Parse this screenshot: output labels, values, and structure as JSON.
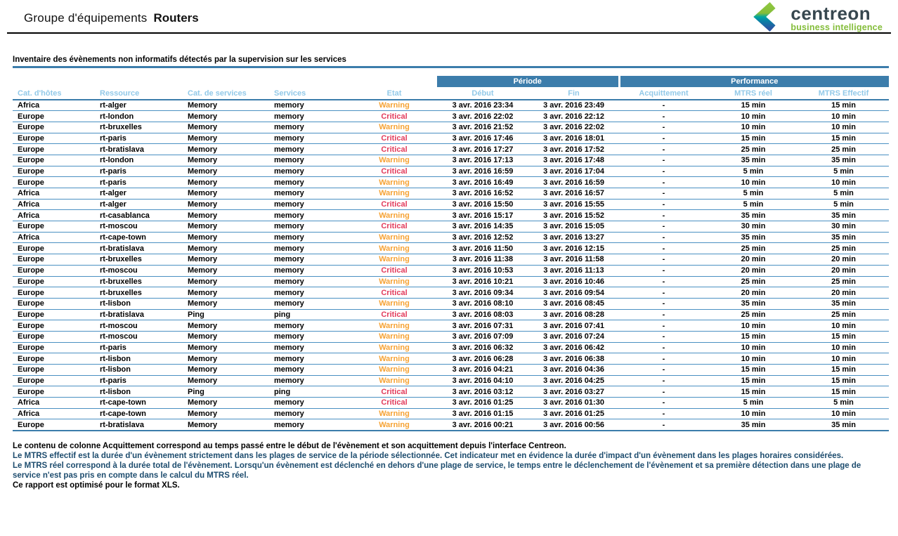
{
  "header": {
    "title_prefix": "Groupe d'équipements",
    "title_group": "Routers",
    "logo": {
      "brand": "centreon",
      "tagline": "business intelligence"
    }
  },
  "section": {
    "title": "Inventaire des évènements non informatifs détectés par la supervision sur les services"
  },
  "colors": {
    "accent": "#3c7dab",
    "column_header_text": "#92c9e8",
    "row_separator": "#4a90c2",
    "warning": "#f6a233",
    "critical": "#e23b5b",
    "brand_dark": "#37474f",
    "brand_green": "#84bd3a",
    "brand_teal": "#00a5a0",
    "brand_blue": "#2b55a2"
  },
  "table": {
    "group_headers": [
      {
        "label": "Période"
      },
      {
        "label": "Performance"
      }
    ],
    "columns": [
      "Cat. d'hôtes",
      "Ressource",
      "Cat. de services",
      "Services",
      "Etat",
      "Début",
      "Fin",
      "Acquittement",
      "MTRS réel",
      "MTRS Effectif"
    ],
    "column_keys": [
      "host-category",
      "resource",
      "service-category",
      "service",
      "state",
      "start",
      "end",
      "acknowledgement",
      "mtrs-real",
      "mtrs-effective"
    ],
    "rows": [
      [
        "Africa",
        "rt-alger",
        "Memory",
        "memory",
        "Warning",
        "3 avr. 2016 23:34",
        "3 avr. 2016 23:49",
        "-",
        "15 min",
        "15 min"
      ],
      [
        "Europe",
        "rt-london",
        "Memory",
        "memory",
        "Critical",
        "3 avr. 2016 22:02",
        "3 avr. 2016 22:12",
        "-",
        "10 min",
        "10 min"
      ],
      [
        "Europe",
        "rt-bruxelles",
        "Memory",
        "memory",
        "Warning",
        "3 avr. 2016 21:52",
        "3 avr. 2016 22:02",
        "-",
        "10 min",
        "10 min"
      ],
      [
        "Europe",
        "rt-paris",
        "Memory",
        "memory",
        "Critical",
        "3 avr. 2016 17:46",
        "3 avr. 2016 18:01",
        "-",
        "15 min",
        "15 min"
      ],
      [
        "Europe",
        "rt-bratislava",
        "Memory",
        "memory",
        "Critical",
        "3 avr. 2016 17:27",
        "3 avr. 2016 17:52",
        "-",
        "25 min",
        "25 min"
      ],
      [
        "Europe",
        "rt-london",
        "Memory",
        "memory",
        "Warning",
        "3 avr. 2016 17:13",
        "3 avr. 2016 17:48",
        "-",
        "35 min",
        "35 min"
      ],
      [
        "Europe",
        "rt-paris",
        "Memory",
        "memory",
        "Critical",
        "3 avr. 2016 16:59",
        "3 avr. 2016 17:04",
        "-",
        "5 min",
        "5 min"
      ],
      [
        "Europe",
        "rt-paris",
        "Memory",
        "memory",
        "Warning",
        "3 avr. 2016 16:49",
        "3 avr. 2016 16:59",
        "-",
        "10 min",
        "10 min"
      ],
      [
        "Africa",
        "rt-alger",
        "Memory",
        "memory",
        "Warning",
        "3 avr. 2016 16:52",
        "3 avr. 2016 16:57",
        "-",
        "5 min",
        "5 min"
      ],
      [
        "Africa",
        "rt-alger",
        "Memory",
        "memory",
        "Critical",
        "3 avr. 2016 15:50",
        "3 avr. 2016 15:55",
        "-",
        "5 min",
        "5 min"
      ],
      [
        "Africa",
        "rt-casablanca",
        "Memory",
        "memory",
        "Warning",
        "3 avr. 2016 15:17",
        "3 avr. 2016 15:52",
        "-",
        "35 min",
        "35 min"
      ],
      [
        "Europe",
        "rt-moscou",
        "Memory",
        "memory",
        "Critical",
        "3 avr. 2016 14:35",
        "3 avr. 2016 15:05",
        "-",
        "30 min",
        "30 min"
      ],
      [
        "Africa",
        "rt-cape-town",
        "Memory",
        "memory",
        "Warning",
        "3 avr. 2016 12:52",
        "3 avr. 2016 13:27",
        "-",
        "35 min",
        "35 min"
      ],
      [
        "Europe",
        "rt-bratislava",
        "Memory",
        "memory",
        "Warning",
        "3 avr. 2016 11:50",
        "3 avr. 2016 12:15",
        "-",
        "25 min",
        "25 min"
      ],
      [
        "Europe",
        "rt-bruxelles",
        "Memory",
        "memory",
        "Warning",
        "3 avr. 2016 11:38",
        "3 avr. 2016 11:58",
        "-",
        "20 min",
        "20 min"
      ],
      [
        "Europe",
        "rt-moscou",
        "Memory",
        "memory",
        "Critical",
        "3 avr. 2016 10:53",
        "3 avr. 2016 11:13",
        "-",
        "20 min",
        "20 min"
      ],
      [
        "Europe",
        "rt-bruxelles",
        "Memory",
        "memory",
        "Warning",
        "3 avr. 2016 10:21",
        "3 avr. 2016 10:46",
        "-",
        "25 min",
        "25 min"
      ],
      [
        "Europe",
        "rt-bruxelles",
        "Memory",
        "memory",
        "Critical",
        "3 avr. 2016 09:34",
        "3 avr. 2016 09:54",
        "-",
        "20 min",
        "20 min"
      ],
      [
        "Europe",
        "rt-lisbon",
        "Memory",
        "memory",
        "Warning",
        "3 avr. 2016 08:10",
        "3 avr. 2016 08:45",
        "-",
        "35 min",
        "35 min"
      ],
      [
        "Europe",
        "rt-bratislava",
        "Ping",
        "ping",
        "Critical",
        "3 avr. 2016 08:03",
        "3 avr. 2016 08:28",
        "-",
        "25 min",
        "25 min"
      ],
      [
        "Europe",
        "rt-moscou",
        "Memory",
        "memory",
        "Warning",
        "3 avr. 2016 07:31",
        "3 avr. 2016 07:41",
        "-",
        "10 min",
        "10 min"
      ],
      [
        "Europe",
        "rt-moscou",
        "Memory",
        "memory",
        "Warning",
        "3 avr. 2016 07:09",
        "3 avr. 2016 07:24",
        "-",
        "15 min",
        "15 min"
      ],
      [
        "Europe",
        "rt-paris",
        "Memory",
        "memory",
        "Warning",
        "3 avr. 2016 06:32",
        "3 avr. 2016 06:42",
        "-",
        "10 min",
        "10 min"
      ],
      [
        "Europe",
        "rt-lisbon",
        "Memory",
        "memory",
        "Warning",
        "3 avr. 2016 06:28",
        "3 avr. 2016 06:38",
        "-",
        "10 min",
        "10 min"
      ],
      [
        "Europe",
        "rt-lisbon",
        "Memory",
        "memory",
        "Warning",
        "3 avr. 2016 04:21",
        "3 avr. 2016 04:36",
        "-",
        "15 min",
        "15 min"
      ],
      [
        "Europe",
        "rt-paris",
        "Memory",
        "memory",
        "Warning",
        "3 avr. 2016 04:10",
        "3 avr. 2016 04:25",
        "-",
        "15 min",
        "15 min"
      ],
      [
        "Europe",
        "rt-lisbon",
        "Ping",
        "ping",
        "Critical",
        "3 avr. 2016 03:12",
        "3 avr. 2016 03:27",
        "-",
        "15 min",
        "15 min"
      ],
      [
        "Africa",
        "rt-cape-town",
        "Memory",
        "memory",
        "Critical",
        "3 avr. 2016 01:25",
        "3 avr. 2016 01:30",
        "-",
        "5 min",
        "5 min"
      ],
      [
        "Africa",
        "rt-cape-town",
        "Memory",
        "memory",
        "Warning",
        "3 avr. 2016 01:15",
        "3 avr. 2016 01:25",
        "-",
        "10 min",
        "10 min"
      ],
      [
        "Europe",
        "rt-bratislava",
        "Memory",
        "memory",
        "Warning",
        "3 avr. 2016 00:21",
        "3 avr. 2016 00:56",
        "-",
        "35 min",
        "35 min"
      ]
    ]
  },
  "footer": {
    "notes": [
      {
        "text": "Le contenu de colonne Acquittement correspond au temps passé entre le début de l'évènement et son acquittement depuis l'interface Centreon."
      },
      {
        "text": "Le MTRS effectif est la durée d'un évènement strictement dans les plages de service de la période sélectionnée. Cet indicateur met en évidence la durée d'impact d'un évènement dans les plages horaires considérées."
      },
      {
        "text": "Le MTRS réel correspond à la durée total de l'évènement. Lorsqu'un évènement est déclenché en dehors d'une plage de service, le temps entre le déclenchement de l'évènement et sa première détection dans une plage de service n'est pas pris en compte dans le calcul du MTRS réel."
      },
      {
        "text": "Ce rapport est optimisé pour le format XLS."
      }
    ]
  }
}
